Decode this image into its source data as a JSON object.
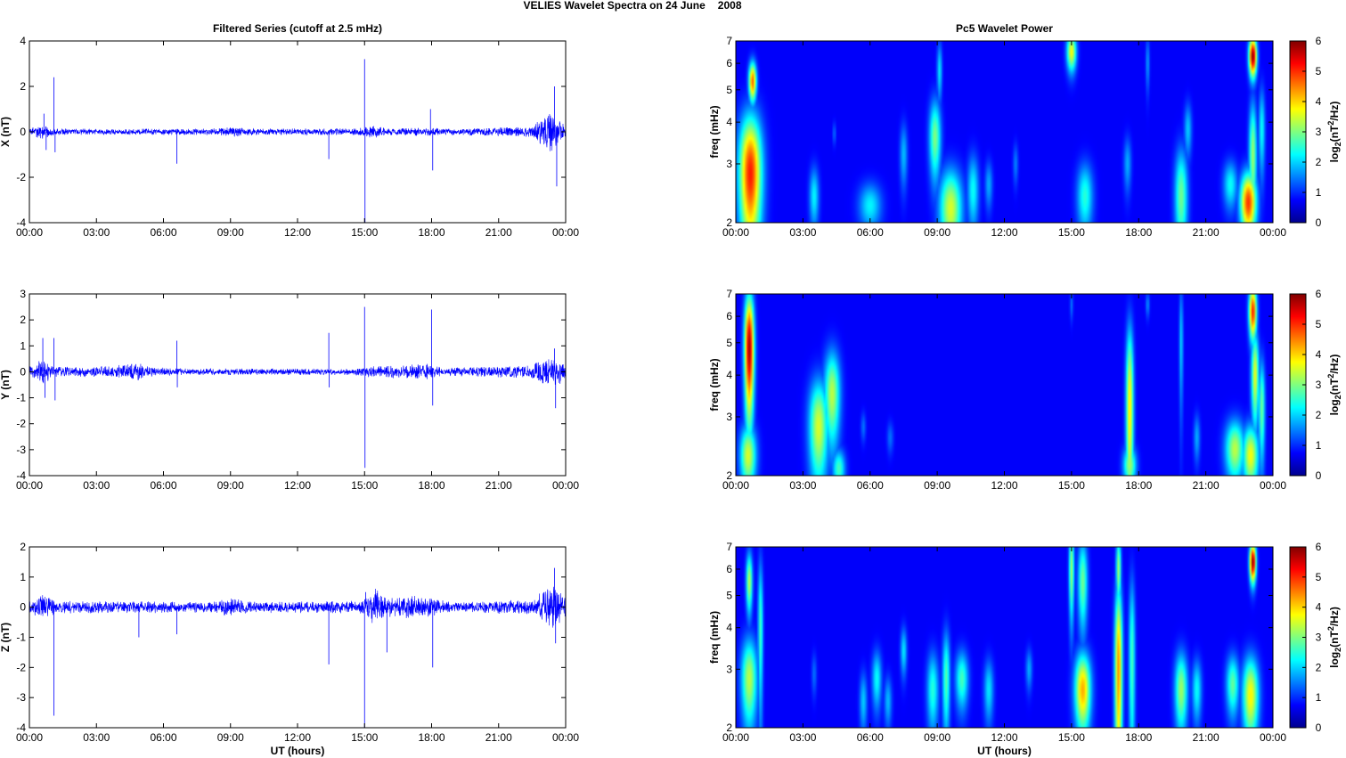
{
  "figure": {
    "title_left": "VELIES Wavelet Spectra on 24 June",
    "title_right": "2008"
  },
  "chart_data": [
    {
      "type": "line",
      "title": "Filtered Series (cutoff at 2.5 mHz)",
      "ylabel": "X (nT)",
      "xlabel": "",
      "x_ticks": [
        "00:00",
        "03:00",
        "06:00",
        "09:00",
        "12:00",
        "15:00",
        "18:00",
        "21:00",
        "00:00"
      ],
      "y_ticks": [
        "4",
        "2",
        "0",
        "-2",
        "-4"
      ],
      "ylim": [
        -4,
        4
      ],
      "xlim_hours": [
        0,
        24
      ],
      "series_color": "#0000ff",
      "noise_profile": [
        [
          0,
          0.15
        ],
        [
          0.6,
          0.35
        ],
        [
          1.2,
          0.15
        ],
        [
          4,
          0.12
        ],
        [
          8,
          0.15
        ],
        [
          9,
          0.22
        ],
        [
          10,
          0.14
        ],
        [
          14.5,
          0.14
        ],
        [
          15.3,
          0.3
        ],
        [
          16,
          0.14
        ],
        [
          17.5,
          0.18
        ],
        [
          18.5,
          0.14
        ],
        [
          22.5,
          0.22
        ],
        [
          23.3,
          0.9
        ],
        [
          23.7,
          0.5
        ],
        [
          24,
          0.3
        ]
      ],
      "spikes": [
        [
          0.65,
          0.8
        ],
        [
          0.75,
          -0.8
        ],
        [
          1.1,
          2.4
        ],
        [
          1.15,
          -0.9
        ],
        [
          6.6,
          -1.4
        ],
        [
          13.4,
          -1.2
        ],
        [
          15.0,
          3.2
        ],
        [
          15.02,
          -4
        ],
        [
          17.95,
          1.0
        ],
        [
          18.05,
          -1.7
        ],
        [
          23.5,
          2.0
        ],
        [
          23.6,
          -2.4
        ]
      ]
    },
    {
      "type": "line",
      "title": "",
      "ylabel": "Y (nT)",
      "xlabel": "",
      "x_ticks": [
        "00:00",
        "03:00",
        "06:00",
        "09:00",
        "12:00",
        "15:00",
        "18:00",
        "21:00",
        "00:00"
      ],
      "y_ticks": [
        "3",
        "2",
        "1",
        "0",
        "-1",
        "-2",
        "-3",
        "-4"
      ],
      "ylim": [
        -4,
        3
      ],
      "xlim_hours": [
        0,
        24
      ],
      "series_color": "#0000ff",
      "noise_profile": [
        [
          0,
          0.2
        ],
        [
          0.6,
          0.5
        ],
        [
          1.2,
          0.2
        ],
        [
          3.5,
          0.2
        ],
        [
          4.8,
          0.35
        ],
        [
          5.5,
          0.18
        ],
        [
          7,
          0.12
        ],
        [
          14.5,
          0.12
        ],
        [
          15.2,
          0.2
        ],
        [
          17.8,
          0.3
        ],
        [
          18.5,
          0.15
        ],
        [
          22.5,
          0.25
        ],
        [
          23.3,
          0.6
        ],
        [
          23.7,
          0.5
        ],
        [
          24,
          0.3
        ]
      ],
      "spikes": [
        [
          0.6,
          1.3
        ],
        [
          0.7,
          -1.0
        ],
        [
          1.1,
          1.3
        ],
        [
          1.15,
          -1.1
        ],
        [
          6.6,
          1.2
        ],
        [
          6.62,
          -0.6
        ],
        [
          13.4,
          1.5
        ],
        [
          13.42,
          -0.6
        ],
        [
          15.0,
          2.5
        ],
        [
          15.02,
          -3.7
        ],
        [
          18.0,
          2.4
        ],
        [
          18.05,
          -1.3
        ],
        [
          23.5,
          0.9
        ],
        [
          23.55,
          -1.4
        ]
      ]
    },
    {
      "type": "line",
      "title": "",
      "ylabel": "Z (nT)",
      "xlabel": "UT (hours)",
      "x_ticks": [
        "00:00",
        "03:00",
        "06:00",
        "09:00",
        "12:00",
        "15:00",
        "18:00",
        "21:00",
        "00:00"
      ],
      "y_ticks": [
        "2",
        "1",
        "0",
        "-1",
        "-2",
        "-3",
        "-4"
      ],
      "ylim": [
        -4,
        2
      ],
      "xlim_hours": [
        0,
        24
      ],
      "series_color": "#0000ff",
      "noise_profile": [
        [
          0,
          0.2
        ],
        [
          0.6,
          0.4
        ],
        [
          1.2,
          0.2
        ],
        [
          8,
          0.18
        ],
        [
          9,
          0.3
        ],
        [
          10,
          0.18
        ],
        [
          14.8,
          0.2
        ],
        [
          15.5,
          0.6
        ],
        [
          16,
          0.3
        ],
        [
          17.3,
          0.4
        ],
        [
          18.3,
          0.25
        ],
        [
          19,
          0.15
        ],
        [
          22.5,
          0.25
        ],
        [
          23.4,
          0.8
        ],
        [
          23.8,
          0.5
        ],
        [
          24,
          0.3
        ]
      ],
      "spikes": [
        [
          1.1,
          -3.6
        ],
        [
          4.9,
          -1.0
        ],
        [
          6.6,
          -0.9
        ],
        [
          13.4,
          -1.9
        ],
        [
          15.0,
          -4
        ],
        [
          15.05,
          0.5
        ],
        [
          16.0,
          -1.5
        ],
        [
          18.05,
          -2.0
        ],
        [
          23.5,
          1.3
        ],
        [
          23.55,
          -1.2
        ]
      ]
    },
    {
      "type": "heatmap",
      "title": "Pc5 Wavelet Power",
      "ylabel": "freq (mHz)",
      "xlabel": "",
      "x_ticks": [
        "00:00",
        "03:00",
        "06:00",
        "09:00",
        "12:00",
        "15:00",
        "18:00",
        "21:00",
        "00:00"
      ],
      "y_ticks": [
        "7",
        "6",
        "5",
        "4",
        "3",
        "2"
      ],
      "ylim_mHz": [
        2,
        7
      ],
      "yscale": "log",
      "colorbar": {
        "label": "log2(nT²/Hz)",
        "range": [
          0,
          6
        ],
        "ticks": [
          "6",
          "5",
          "4",
          "3",
          "2",
          "1",
          "0"
        ]
      },
      "blobs": [
        [
          0.65,
          2.8,
          0.35,
          0.9,
          5.0
        ],
        [
          0.75,
          5.3,
          0.12,
          0.5,
          4.5
        ],
        [
          0.55,
          2.15,
          0.25,
          0.25,
          2.5
        ],
        [
          3.5,
          2.4,
          0.15,
          0.35,
          1.7
        ],
        [
          4.4,
          3.7,
          0.05,
          0.2,
          0.8
        ],
        [
          6.0,
          2.25,
          0.35,
          0.25,
          1.7
        ],
        [
          7.5,
          3.2,
          0.12,
          0.5,
          1.3
        ],
        [
          8.9,
          3.6,
          0.18,
          0.7,
          2.6
        ],
        [
          9.6,
          2.2,
          0.35,
          0.45,
          3.2
        ],
        [
          9.1,
          5.7,
          0.08,
          0.8,
          1.6
        ],
        [
          10.6,
          2.5,
          0.18,
          0.45,
          1.8
        ],
        [
          11.3,
          2.6,
          0.12,
          0.3,
          1.2
        ],
        [
          12.5,
          3.0,
          0.08,
          0.3,
          0.9
        ],
        [
          15.0,
          6.5,
          0.15,
          0.6,
          3.4
        ],
        [
          15.6,
          2.4,
          0.25,
          0.4,
          2.0
        ],
        [
          17.5,
          3.0,
          0.12,
          0.4,
          1.2
        ],
        [
          18.4,
          6.0,
          0.06,
          0.8,
          1.1
        ],
        [
          19.9,
          2.4,
          0.2,
          0.6,
          2.5
        ],
        [
          20.2,
          3.8,
          0.12,
          0.5,
          1.4
        ],
        [
          22.1,
          2.6,
          0.22,
          0.3,
          1.8
        ],
        [
          22.9,
          2.3,
          0.25,
          0.35,
          4.8
        ],
        [
          23.1,
          6.3,
          0.12,
          0.6,
          6.0
        ],
        [
          23.1,
          3.2,
          0.12,
          0.9,
          2.8
        ],
        [
          23.5,
          3.8,
          0.1,
          0.8,
          1.8
        ]
      ]
    },
    {
      "type": "heatmap",
      "title": "",
      "ylabel": "freq (mHz)",
      "xlabel": "",
      "x_ticks": [
        "00:00",
        "03:00",
        "06:00",
        "09:00",
        "12:00",
        "15:00",
        "18:00",
        "21:00",
        "00:00"
      ],
      "y_ticks": [
        "7",
        "6",
        "5",
        "4",
        "3",
        "2"
      ],
      "ylim_mHz": [
        2,
        7
      ],
      "yscale": "log",
      "colorbar": {
        "label": "log2(nT²/Hz)",
        "range": [
          0,
          6
        ],
        "ticks": [
          "6",
          "5",
          "4",
          "3",
          "2",
          "1",
          "0"
        ]
      },
      "blobs": [
        [
          0.6,
          4.8,
          0.15,
          1.4,
          5.8
        ],
        [
          0.55,
          2.3,
          0.25,
          0.35,
          3.2
        ],
        [
          3.7,
          2.8,
          0.3,
          0.7,
          3.2
        ],
        [
          4.3,
          3.5,
          0.25,
          0.8,
          3.0
        ],
        [
          4.6,
          2.1,
          0.2,
          0.2,
          2.2
        ],
        [
          5.7,
          2.8,
          0.08,
          0.2,
          0.8
        ],
        [
          6.9,
          2.6,
          0.1,
          0.2,
          0.8
        ],
        [
          15.0,
          6.5,
          0.05,
          0.5,
          0.8
        ],
        [
          17.6,
          3.2,
          0.12,
          1.5,
          3.6
        ],
        [
          17.6,
          2.15,
          0.2,
          0.2,
          2.8
        ],
        [
          18.4,
          6.5,
          0.06,
          0.4,
          1.0
        ],
        [
          19.9,
          5.0,
          0.06,
          1.5,
          1.5
        ],
        [
          20.6,
          2.6,
          0.1,
          0.3,
          1.2
        ],
        [
          22.3,
          2.4,
          0.3,
          0.35,
          3.0
        ],
        [
          23.0,
          2.3,
          0.25,
          0.35,
          3.4
        ],
        [
          23.1,
          6.2,
          0.12,
          0.8,
          5.0
        ],
        [
          23.2,
          4.0,
          0.12,
          0.9,
          3.3
        ],
        [
          23.5,
          3.2,
          0.1,
          0.8,
          2.5
        ]
      ]
    },
    {
      "type": "heatmap",
      "title": "",
      "ylabel": "freq (mHz)",
      "xlabel": "UT (hours)",
      "x_ticks": [
        "00:00",
        "03:00",
        "06:00",
        "09:00",
        "12:00",
        "15:00",
        "18:00",
        "21:00",
        "00:00"
      ],
      "y_ticks": [
        "7",
        "6",
        "5",
        "4",
        "3",
        "2"
      ],
      "ylim_mHz": [
        2,
        7
      ],
      "yscale": "log",
      "colorbar": {
        "label": "log2(nT²/Hz)",
        "range": [
          0,
          6
        ],
        "ticks": [
          "6",
          "5",
          "4",
          "3",
          "2",
          "1",
          "0"
        ]
      },
      "blobs": [
        [
          0.6,
          2.8,
          0.25,
          0.6,
          3.0
        ],
        [
          0.6,
          5.5,
          0.1,
          0.8,
          3.0
        ],
        [
          1.1,
          4.0,
          0.08,
          1.5,
          2.2
        ],
        [
          3.5,
          2.9,
          0.08,
          0.3,
          0.8
        ],
        [
          5.7,
          2.4,
          0.12,
          0.35,
          1.4
        ],
        [
          6.3,
          2.8,
          0.15,
          0.4,
          1.8
        ],
        [
          6.8,
          2.4,
          0.12,
          0.3,
          1.3
        ],
        [
          7.5,
          3.4,
          0.1,
          0.4,
          1.6
        ],
        [
          8.8,
          2.6,
          0.18,
          0.5,
          2.0
        ],
        [
          9.4,
          2.8,
          0.12,
          0.7,
          2.3
        ],
        [
          10.1,
          2.8,
          0.2,
          0.4,
          2.2
        ],
        [
          11.3,
          2.6,
          0.15,
          0.4,
          1.6
        ],
        [
          13.1,
          3.0,
          0.1,
          0.3,
          1.2
        ],
        [
          15.0,
          6.0,
          0.08,
          1.4,
          2.8
        ],
        [
          15.5,
          2.6,
          0.25,
          0.5,
          4.0
        ],
        [
          15.5,
          5.5,
          0.15,
          1.2,
          2.5
        ],
        [
          17.1,
          3.0,
          0.12,
          1.5,
          4.2
        ],
        [
          17.1,
          6.0,
          0.08,
          1.0,
          2.8
        ],
        [
          17.7,
          3.2,
          0.1,
          1.5,
          2.2
        ],
        [
          19.9,
          2.6,
          0.2,
          0.5,
          2.8
        ],
        [
          20.6,
          2.6,
          0.15,
          0.4,
          1.8
        ],
        [
          22.2,
          2.7,
          0.2,
          0.4,
          2.4
        ],
        [
          23.0,
          2.5,
          0.25,
          0.5,
          3.5
        ],
        [
          23.1,
          6.3,
          0.1,
          0.6,
          6.0
        ]
      ]
    }
  ]
}
